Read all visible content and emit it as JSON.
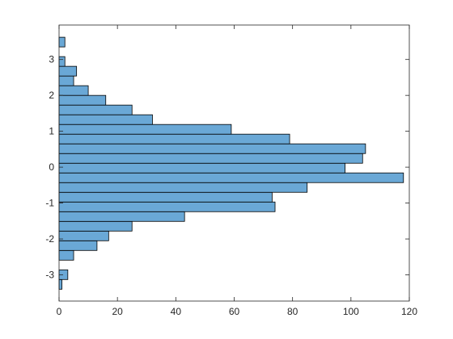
{
  "chart_data": {
    "type": "histogram",
    "orientation": "horizontal",
    "bins": [
      -3.4,
      -3.13,
      -2.86,
      -2.59,
      -2.32,
      -2.05,
      -1.78,
      -1.51,
      -1.24,
      -0.97,
      -0.7,
      -0.43,
      -0.16,
      0.11,
      0.38,
      0.65,
      0.92,
      1.19,
      1.46,
      1.73,
      2.0,
      2.27,
      2.54,
      2.81,
      3.08,
      3.35,
      3.62
    ],
    "values": [
      1,
      3,
      0,
      5,
      13,
      17,
      25,
      43,
      74,
      73,
      85,
      118,
      98,
      104,
      105,
      79,
      59,
      32,
      25,
      16,
      10,
      5,
      6,
      2,
      0,
      2
    ],
    "color": "#6aa8d6",
    "edge_color": "#000000",
    "xlim": [
      0,
      120
    ],
    "xticks": [
      0,
      20,
      40,
      60,
      80,
      100,
      120
    ],
    "ylim": [
      -3.73,
      3.96
    ],
    "yticks": [
      -3,
      -2,
      -1,
      0,
      1,
      2,
      3
    ],
    "grid": false
  }
}
